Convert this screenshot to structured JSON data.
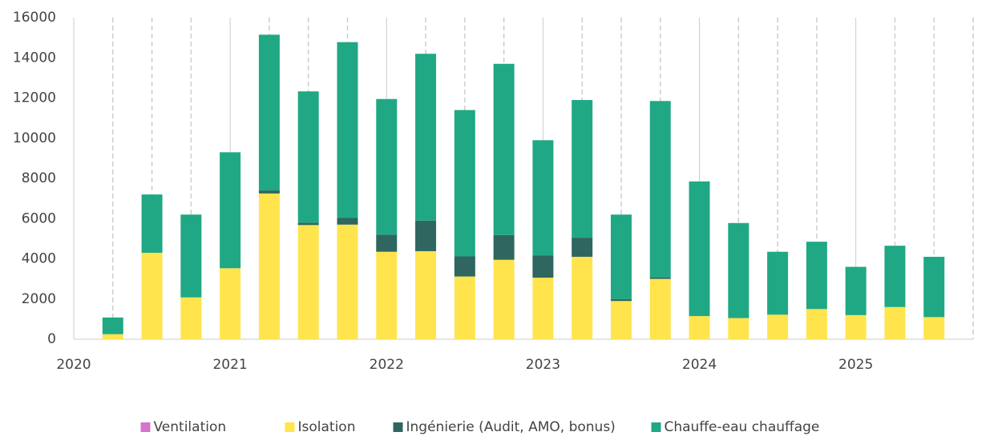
{
  "chart_data": {
    "type": "stacked_bar",
    "x": [
      2020.25,
      2020.5,
      2020.75,
      2021.0,
      2021.25,
      2021.5,
      2021.75,
      2022.0,
      2022.25,
      2022.5,
      2022.75,
      2023.0,
      2023.25,
      2023.5,
      2023.75,
      2024.0,
      2024.25,
      2024.5,
      2024.75,
      2025.0,
      2025.25,
      2025.5
    ],
    "series": [
      {
        "name": "Ventilation",
        "color": "#d673cc",
        "values": [
          0,
          0,
          0,
          0,
          0,
          0,
          0,
          0,
          0,
          0,
          0,
          0,
          0,
          0,
          0,
          0,
          0,
          0,
          0,
          0,
          0,
          0
        ]
      },
      {
        "name": "Isolation",
        "color": "#ffe44d",
        "values": [
          250,
          4300,
          2080,
          3530,
          7250,
          5680,
          5700,
          4350,
          4380,
          3120,
          3950,
          3060,
          4100,
          1900,
          3000,
          1150,
          1050,
          1220,
          1500,
          1200,
          1600,
          1100
        ]
      },
      {
        "name": "Ingénierie (Audit, AMO, bonus)",
        "color": "#2f6660",
        "values": [
          0,
          0,
          0,
          0,
          150,
          120,
          330,
          850,
          1520,
          1000,
          1230,
          1100,
          950,
          100,
          80,
          0,
          0,
          0,
          0,
          0,
          0,
          0
        ]
      },
      {
        "name": "Chauffe-eau chauffage",
        "color": "#20a884",
        "values": [
          830,
          2900,
          4120,
          5770,
          7750,
          6530,
          8750,
          6750,
          8300,
          7280,
          8520,
          5740,
          6850,
          4200,
          8770,
          6700,
          4730,
          3130,
          3350,
          2400,
          3050,
          3000
        ]
      }
    ],
    "xlim": [
      2020,
      2025.75
    ],
    "xticks": [
      2020,
      2021,
      2022,
      2023,
      2024,
      2025
    ],
    "ylim": [
      0,
      16000
    ],
    "yticks": [
      0,
      2000,
      4000,
      6000,
      8000,
      10000,
      12000,
      14000,
      16000
    ],
    "grid": true,
    "legend": "bottom"
  }
}
